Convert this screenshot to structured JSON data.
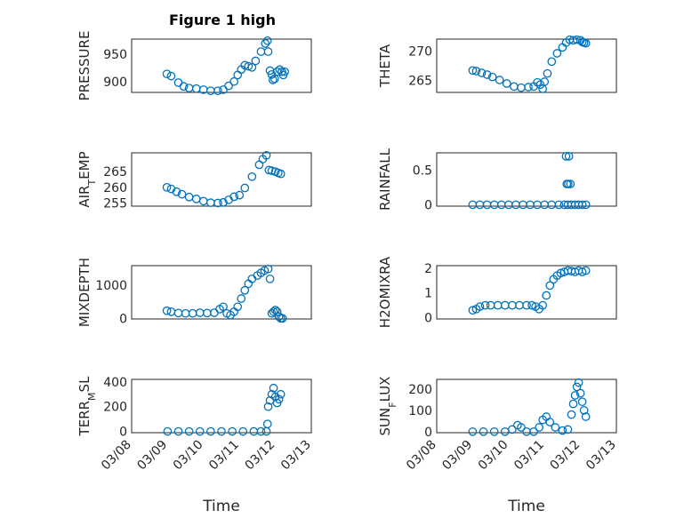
{
  "title": "Figure 1 high",
  "colors": {
    "marker": "#0072BD",
    "axis": "#262626",
    "grid": "#cfcfcf"
  },
  "xticks": [
    "03/08",
    "03/09",
    "03/10",
    "03/11",
    "03/12",
    "03/13"
  ],
  "xlabel": "Time",
  "chart_data": [
    {
      "type": "scatter",
      "ylabel": "PRESSURE",
      "ylim": [
        880,
        978
      ],
      "yticks": [
        900,
        950
      ],
      "xlim": [
        0,
        5
      ],
      "grid": true,
      "minor_grid": true,
      "points": [
        [
          0.98,
          914
        ],
        [
          1.1,
          910
        ],
        [
          1.3,
          898
        ],
        [
          1.45,
          891
        ],
        [
          1.6,
          888
        ],
        [
          1.8,
          887
        ],
        [
          2.0,
          885
        ],
        [
          2.2,
          883
        ],
        [
          2.4,
          883
        ],
        [
          2.55,
          885
        ],
        [
          2.7,
          892
        ],
        [
          2.85,
          900
        ],
        [
          2.95,
          912
        ],
        [
          3.05,
          922
        ],
        [
          3.15,
          930
        ],
        [
          3.25,
          928
        ],
        [
          3.35,
          926
        ],
        [
          3.45,
          938
        ],
        [
          3.6,
          955
        ],
        [
          3.72,
          970
        ],
        [
          3.78,
          975
        ],
        [
          3.8,
          955
        ],
        [
          3.85,
          920
        ],
        [
          3.9,
          913
        ],
        [
          3.93,
          903
        ],
        [
          3.98,
          905
        ],
        [
          4.05,
          918
        ],
        [
          4.12,
          922
        ],
        [
          4.18,
          918
        ],
        [
          4.22,
          912
        ],
        [
          4.26,
          918
        ]
      ]
    },
    {
      "type": "scatter",
      "ylabel": "THETA",
      "ylim": [
        263,
        272
      ],
      "yticks": [
        265,
        270
      ],
      "xlim": [
        0,
        5
      ],
      "grid": true,
      "minor_grid": true,
      "points": [
        [
          1.0,
          266.7
        ],
        [
          1.1,
          266.6
        ],
        [
          1.25,
          266.3
        ],
        [
          1.4,
          266.0
        ],
        [
          1.55,
          265.6
        ],
        [
          1.75,
          265.1
        ],
        [
          1.95,
          264.5
        ],
        [
          2.15,
          264.0
        ],
        [
          2.35,
          263.8
        ],
        [
          2.55,
          263.9
        ],
        [
          2.7,
          264.0
        ],
        [
          2.8,
          264.7
        ],
        [
          2.88,
          264.3
        ],
        [
          2.95,
          263.6
        ],
        [
          3.0,
          264.8
        ],
        [
          3.08,
          266.2
        ],
        [
          3.2,
          268.2
        ],
        [
          3.35,
          269.6
        ],
        [
          3.5,
          270.6
        ],
        [
          3.6,
          271.4
        ],
        [
          3.7,
          271.9
        ],
        [
          3.8,
          271.8
        ],
        [
          3.9,
          271.9
        ],
        [
          4.0,
          271.8
        ],
        [
          4.05,
          271.5
        ],
        [
          4.1,
          271.4
        ],
        [
          4.15,
          271.3
        ]
      ]
    },
    {
      "type": "scatter",
      "ylabel": "AIR_TEMP",
      "ylim": [
        254,
        271
      ],
      "yticks": [
        255,
        260,
        265
      ],
      "xlim": [
        0,
        5
      ],
      "grid": true,
      "minor_grid": true,
      "points": [
        [
          0.98,
          260.0
        ],
        [
          1.1,
          259.5
        ],
        [
          1.25,
          258.6
        ],
        [
          1.4,
          257.8
        ],
        [
          1.6,
          256.9
        ],
        [
          1.8,
          256.3
        ],
        [
          2.0,
          255.6
        ],
        [
          2.2,
          255.1
        ],
        [
          2.4,
          255.0
        ],
        [
          2.55,
          255.2
        ],
        [
          2.7,
          256.0
        ],
        [
          2.85,
          257.0
        ],
        [
          3.0,
          257.5
        ],
        [
          3.15,
          259.8
        ],
        [
          3.35,
          263.4
        ],
        [
          3.55,
          267.2
        ],
        [
          3.65,
          269.0
        ],
        [
          3.75,
          270.2
        ],
        [
          3.82,
          265.5
        ],
        [
          3.9,
          265.3
        ],
        [
          4.0,
          265.0
        ],
        [
          4.08,
          264.6
        ],
        [
          4.15,
          264.3
        ]
      ]
    },
    {
      "type": "scatter",
      "ylabel": "RAINFALL",
      "ylim": [
        -0.02,
        0.75
      ],
      "yticks": [
        0,
        0.5
      ],
      "xlim": [
        0,
        5
      ],
      "grid": true,
      "minor_grid": true,
      "points": [
        [
          1.0,
          0
        ],
        [
          1.2,
          0
        ],
        [
          1.4,
          0
        ],
        [
          1.6,
          0
        ],
        [
          1.8,
          0
        ],
        [
          2.0,
          0
        ],
        [
          2.2,
          0
        ],
        [
          2.4,
          0
        ],
        [
          2.6,
          0
        ],
        [
          2.8,
          0
        ],
        [
          3.0,
          0
        ],
        [
          3.2,
          0
        ],
        [
          3.4,
          0
        ],
        [
          3.55,
          0
        ],
        [
          3.6,
          0.7
        ],
        [
          3.62,
          0.3
        ],
        [
          3.65,
          0
        ],
        [
          3.66,
          0.3
        ],
        [
          3.68,
          0.7
        ],
        [
          3.72,
          0.3
        ],
        [
          3.75,
          0
        ],
        [
          3.85,
          0
        ],
        [
          3.95,
          0
        ],
        [
          4.05,
          0
        ],
        [
          4.15,
          0
        ]
      ]
    },
    {
      "type": "scatter",
      "ylabel": "MIXDEPTH",
      "ylim": [
        -20,
        1600
      ],
      "yticks": [
        0,
        1000
      ],
      "xlim": [
        0,
        5
      ],
      "grid": true,
      "minor_grid": true,
      "points": [
        [
          0.98,
          230
        ],
        [
          1.1,
          200
        ],
        [
          1.3,
          160
        ],
        [
          1.5,
          150
        ],
        [
          1.7,
          150
        ],
        [
          1.9,
          170
        ],
        [
          2.1,
          160
        ],
        [
          2.3,
          170
        ],
        [
          2.45,
          280
        ],
        [
          2.55,
          350
        ],
        [
          2.65,
          150
        ],
        [
          2.75,
          100
        ],
        [
          2.85,
          200
        ],
        [
          2.95,
          350
        ],
        [
          3.05,
          600
        ],
        [
          3.15,
          850
        ],
        [
          3.25,
          1050
        ],
        [
          3.35,
          1200
        ],
        [
          3.5,
          1300
        ],
        [
          3.6,
          1380
        ],
        [
          3.7,
          1450
        ],
        [
          3.8,
          1500
        ],
        [
          3.85,
          1200
        ],
        [
          3.9,
          150
        ],
        [
          3.95,
          200
        ],
        [
          4.0,
          250
        ],
        [
          4.05,
          200
        ],
        [
          4.1,
          50
        ],
        [
          4.15,
          0
        ],
        [
          4.2,
          0
        ]
      ]
    },
    {
      "type": "scatter",
      "ylabel": "H2OMIXRA",
      "ylim": [
        -0.05,
        2.1
      ],
      "yticks": [
        0,
        1,
        2
      ],
      "xlim": [
        0,
        5
      ],
      "grid": true,
      "minor_grid": true,
      "points": [
        [
          1.0,
          0.3
        ],
        [
          1.1,
          0.35
        ],
        [
          1.2,
          0.45
        ],
        [
          1.35,
          0.5
        ],
        [
          1.5,
          0.5
        ],
        [
          1.7,
          0.5
        ],
        [
          1.9,
          0.5
        ],
        [
          2.1,
          0.5
        ],
        [
          2.3,
          0.5
        ],
        [
          2.5,
          0.5
        ],
        [
          2.65,
          0.5
        ],
        [
          2.75,
          0.45
        ],
        [
          2.85,
          0.35
        ],
        [
          2.95,
          0.5
        ],
        [
          3.05,
          0.9
        ],
        [
          3.15,
          1.3
        ],
        [
          3.25,
          1.55
        ],
        [
          3.35,
          1.7
        ],
        [
          3.45,
          1.8
        ],
        [
          3.55,
          1.85
        ],
        [
          3.65,
          1.9
        ],
        [
          3.75,
          1.88
        ],
        [
          3.85,
          1.85
        ],
        [
          3.95,
          1.9
        ],
        [
          4.05,
          1.85
        ],
        [
          4.15,
          1.9
        ]
      ]
    },
    {
      "type": "scatter",
      "ylabel": "TERR_MSL",
      "ylim": [
        -10,
        420
      ],
      "yticks": [
        0,
        200,
        400
      ],
      "xlim": [
        0,
        5
      ],
      "grid": true,
      "minor_grid": true,
      "points": [
        [
          1.0,
          0
        ],
        [
          1.3,
          0
        ],
        [
          1.6,
          0
        ],
        [
          1.9,
          0
        ],
        [
          2.2,
          0
        ],
        [
          2.5,
          0
        ],
        [
          2.8,
          0
        ],
        [
          3.1,
          0
        ],
        [
          3.4,
          0
        ],
        [
          3.6,
          0
        ],
        [
          3.75,
          0
        ],
        [
          3.78,
          60
        ],
        [
          3.8,
          200
        ],
        [
          3.85,
          250
        ],
        [
          3.9,
          300
        ],
        [
          3.95,
          350
        ],
        [
          4.0,
          280
        ],
        [
          4.05,
          230
        ],
        [
          4.1,
          260
        ],
        [
          4.15,
          300
        ]
      ]
    },
    {
      "type": "scatter",
      "ylabel": "SUN_FLUX",
      "ylim": [
        -5,
        245
      ],
      "yticks": [
        0,
        100,
        200
      ],
      "xlim": [
        0,
        5
      ],
      "grid": true,
      "minor_grid": true,
      "points": [
        [
          1.0,
          0
        ],
        [
          1.3,
          0
        ],
        [
          1.6,
          0
        ],
        [
          1.9,
          0
        ],
        [
          2.1,
          10
        ],
        [
          2.25,
          30
        ],
        [
          2.35,
          20
        ],
        [
          2.5,
          0
        ],
        [
          2.7,
          0
        ],
        [
          2.85,
          20
        ],
        [
          2.95,
          55
        ],
        [
          3.05,
          70
        ],
        [
          3.15,
          45
        ],
        [
          3.3,
          20
        ],
        [
          3.5,
          5
        ],
        [
          3.65,
          10
        ],
        [
          3.75,
          80
        ],
        [
          3.8,
          130
        ],
        [
          3.85,
          170
        ],
        [
          3.9,
          210
        ],
        [
          3.95,
          230
        ],
        [
          4.0,
          180
        ],
        [
          4.05,
          140
        ],
        [
          4.1,
          100
        ],
        [
          4.15,
          70
        ]
      ]
    }
  ]
}
